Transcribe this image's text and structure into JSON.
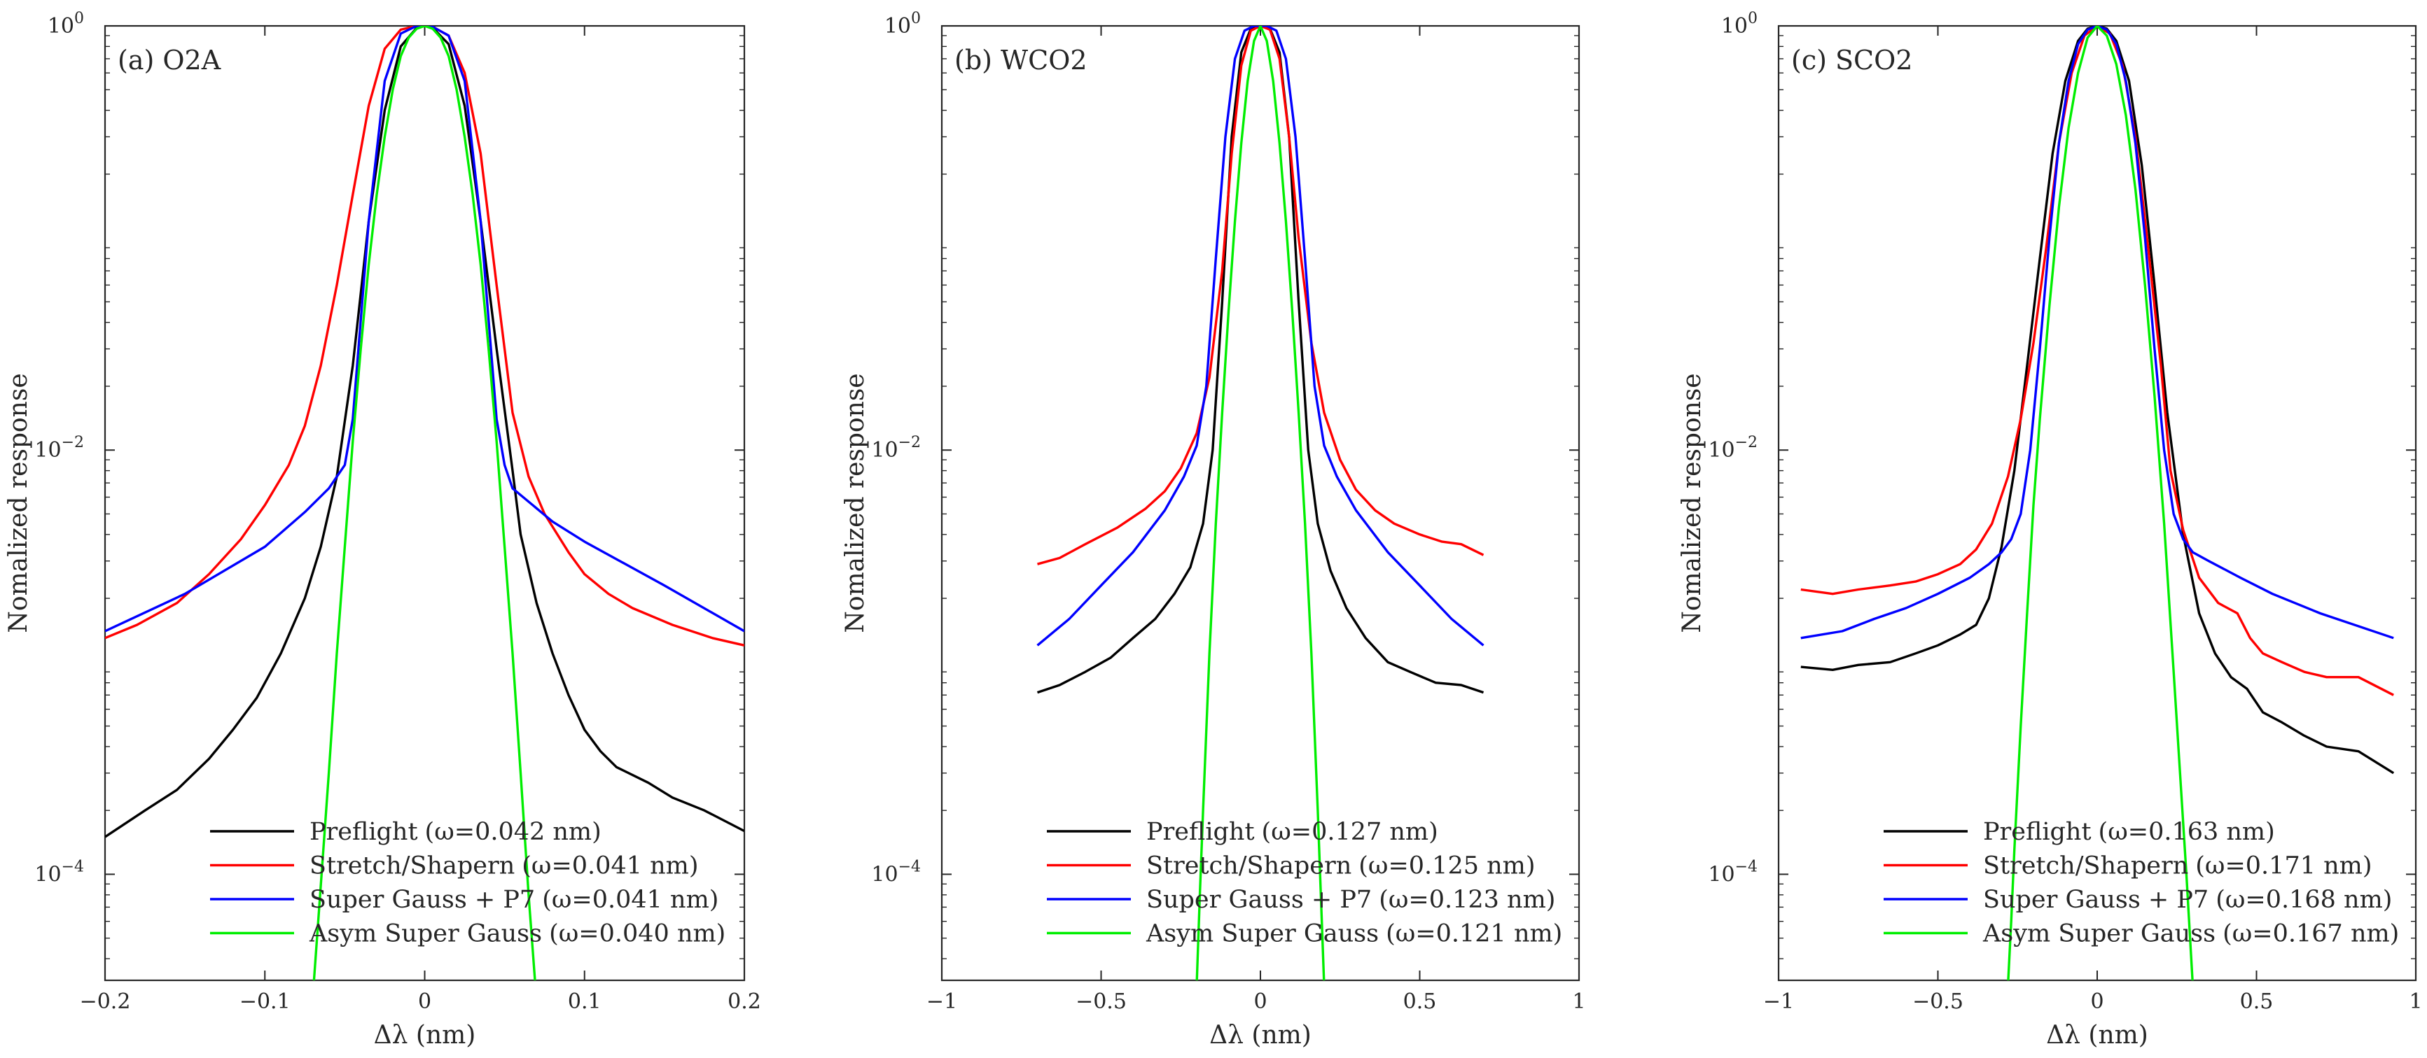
{
  "chart_data": [
    {
      "type": "line",
      "title": "(a) O2A",
      "xlabel": "Δλ (nm)",
      "ylabel": "Nomalized response",
      "xlim": [
        -0.2,
        0.2
      ],
      "ylim_log10": [
        -4.5,
        0
      ],
      "yscale": "log",
      "xticks": [
        -0.2,
        -0.1,
        0,
        0.1,
        0.2
      ],
      "xtick_labels": [
        "−0.2",
        "−0.1",
        "0",
        "0.1",
        "0.2"
      ],
      "yticks_log10": [
        0,
        -2,
        -4
      ],
      "ytick_base": "10",
      "ytick_exponents": [
        "0",
        "−2",
        "−4"
      ],
      "legend_position": "bottom-center",
      "series": [
        {
          "name": "Preflight",
          "width_label": "(ω=0.042 nm)",
          "color": "#000000",
          "x": [
            -0.2,
            -0.175,
            -0.155,
            -0.135,
            -0.12,
            -0.105,
            -0.09,
            -0.075,
            -0.065,
            -0.055,
            -0.045,
            -0.035,
            -0.025,
            -0.015,
            -0.005,
            0,
            0.005,
            0.015,
            0.025,
            0.035,
            0.045,
            0.055,
            0.06,
            0.07,
            0.08,
            0.09,
            0.1,
            0.11,
            0.12,
            0.14,
            0.155,
            0.175,
            0.2
          ],
          "y": [
            0.00015,
            0.0002,
            0.00025,
            0.00035,
            0.00048,
            0.00068,
            0.0011,
            0.002,
            0.0035,
            0.0075,
            0.025,
            0.12,
            0.4,
            0.8,
            0.98,
            1,
            0.98,
            0.82,
            0.42,
            0.12,
            0.03,
            0.008,
            0.004,
            0.0019,
            0.0011,
            0.0007,
            0.00048,
            0.00038,
            0.00032,
            0.00027,
            0.00023,
            0.0002,
            0.00016
          ]
        },
        {
          "name": "Stretch/Shapern",
          "width_label": "(ω=0.041 nm)",
          "color": "#ff0000",
          "x": [
            -0.2,
            -0.18,
            -0.155,
            -0.135,
            -0.115,
            -0.1,
            -0.085,
            -0.075,
            -0.065,
            -0.055,
            -0.045,
            -0.035,
            -0.025,
            -0.015,
            -0.005,
            0,
            0.005,
            0.015,
            0.025,
            0.035,
            0.045,
            0.055,
            0.065,
            0.075,
            0.09,
            0.1,
            0.115,
            0.13,
            0.155,
            0.18,
            0.2
          ],
          "y": [
            0.0013,
            0.0015,
            0.0019,
            0.0026,
            0.0038,
            0.0055,
            0.0085,
            0.013,
            0.025,
            0.06,
            0.16,
            0.42,
            0.78,
            0.96,
            1,
            1,
            0.99,
            0.9,
            0.6,
            0.25,
            0.06,
            0.015,
            0.0075,
            0.005,
            0.0033,
            0.0026,
            0.0021,
            0.0018,
            0.0015,
            0.0013,
            0.0012
          ]
        },
        {
          "name": "Super Gauss + P7",
          "width_label": "(ω=0.041 nm)",
          "color": "#0000ff",
          "x": [
            -0.2,
            -0.15,
            -0.1,
            -0.075,
            -0.06,
            -0.05,
            -0.045,
            -0.035,
            -0.025,
            -0.015,
            -0.005,
            0,
            0.005,
            0.015,
            0.025,
            0.035,
            0.045,
            0.05,
            0.055,
            0.08,
            0.1,
            0.15,
            0.2
          ],
          "y": [
            0.0014,
            0.0021,
            0.0035,
            0.0051,
            0.0066,
            0.0085,
            0.014,
            0.12,
            0.55,
            0.92,
            1,
            1,
            0.99,
            0.9,
            0.55,
            0.12,
            0.014,
            0.0085,
            0.0066,
            0.0046,
            0.0037,
            0.0023,
            0.0014
          ]
        },
        {
          "name": "Asym Super Gauss",
          "width_label": "(ω=0.040 nm)",
          "color": "#00ee00",
          "x": [
            -0.0695,
            -0.066,
            -0.06,
            -0.055,
            -0.05,
            -0.045,
            -0.04,
            -0.035,
            -0.03,
            -0.025,
            -0.02,
            -0.015,
            -0.01,
            -0.005,
            0,
            0.005,
            0.01,
            0.015,
            0.02,
            0.025,
            0.03,
            0.035,
            0.04,
            0.045,
            0.05,
            0.055,
            0.06,
            0.065,
            0.07,
            0.0725
          ],
          "y": [
            3e-05,
            7e-05,
            0.0003,
            0.0011,
            0.0035,
            0.011,
            0.03,
            0.075,
            0.16,
            0.3,
            0.5,
            0.72,
            0.88,
            0.97,
            1,
            0.97,
            0.88,
            0.72,
            0.5,
            0.3,
            0.16,
            0.075,
            0.03,
            0.011,
            0.0035,
            0.0011,
            0.0003,
            8e-05,
            2.5e-05,
            1e-05
          ]
        }
      ]
    },
    {
      "type": "line",
      "title": "(b) WCO2",
      "xlabel": "Δλ (nm)",
      "ylabel": "Nomalized response",
      "xlim": [
        -1,
        1
      ],
      "ylim_log10": [
        -4.5,
        0
      ],
      "yscale": "log",
      "xticks": [
        -1,
        -0.5,
        0,
        0.5,
        1
      ],
      "xtick_labels": [
        "−1",
        "−0.5",
        "0",
        "0.5",
        "1"
      ],
      "yticks_log10": [
        0,
        -2,
        -4
      ],
      "ytick_base": "10",
      "ytick_exponents": [
        "0",
        "−2",
        "−4"
      ],
      "legend_position": "bottom-center",
      "series": [
        {
          "name": "Preflight",
          "width_label": "(ω=0.127 nm)",
          "color": "#000000",
          "x": [
            -0.7,
            -0.63,
            -0.55,
            -0.47,
            -0.4,
            -0.33,
            -0.27,
            -0.22,
            -0.18,
            -0.15,
            -0.12,
            -0.09,
            -0.06,
            -0.03,
            0,
            0.03,
            0.06,
            0.09,
            0.12,
            0.15,
            0.18,
            0.22,
            0.27,
            0.33,
            0.4,
            0.47,
            0.55,
            0.63,
            0.7
          ],
          "y": [
            0.00072,
            0.00078,
            0.0009,
            0.00105,
            0.0013,
            0.0016,
            0.0021,
            0.0028,
            0.0045,
            0.01,
            0.05,
            0.3,
            0.75,
            0.97,
            1,
            0.97,
            0.75,
            0.3,
            0.05,
            0.01,
            0.0045,
            0.0027,
            0.0018,
            0.0013,
            0.001,
            0.0009,
            0.0008,
            0.00078,
            0.00072
          ]
        },
        {
          "name": "Stretch/Shapern",
          "width_label": "(ω=0.125 nm)",
          "color": "#ff0000",
          "x": [
            -0.7,
            -0.63,
            -0.55,
            -0.45,
            -0.36,
            -0.3,
            -0.25,
            -0.2,
            -0.16,
            -0.12,
            -0.09,
            -0.06,
            -0.03,
            0,
            0.03,
            0.06,
            0.09,
            0.12,
            0.16,
            0.2,
            0.25,
            0.3,
            0.36,
            0.42,
            0.5,
            0.57,
            0.63,
            0.7
          ],
          "y": [
            0.0029,
            0.0031,
            0.0036,
            0.0043,
            0.0053,
            0.0064,
            0.0082,
            0.012,
            0.022,
            0.07,
            0.25,
            0.65,
            0.95,
            1,
            0.96,
            0.7,
            0.3,
            0.1,
            0.032,
            0.015,
            0.009,
            0.0065,
            0.0052,
            0.0045,
            0.004,
            0.0037,
            0.0036,
            0.0032
          ]
        },
        {
          "name": "Super Gauss + P7",
          "width_label": "(ω=0.123 nm)",
          "color": "#0000ff",
          "x": [
            -0.7,
            -0.6,
            -0.5,
            -0.4,
            -0.3,
            -0.24,
            -0.2,
            -0.17,
            -0.14,
            -0.11,
            -0.08,
            -0.05,
            -0.02,
            0,
            0.02,
            0.05,
            0.08,
            0.11,
            0.14,
            0.17,
            0.2,
            0.24,
            0.3,
            0.4,
            0.5,
            0.6,
            0.7
          ],
          "y": [
            0.0012,
            0.0016,
            0.0023,
            0.0033,
            0.0052,
            0.0075,
            0.0105,
            0.02,
            0.08,
            0.3,
            0.7,
            0.95,
            1,
            1,
            1,
            0.95,
            0.7,
            0.3,
            0.08,
            0.02,
            0.0105,
            0.0075,
            0.0052,
            0.0033,
            0.0023,
            0.0016,
            0.0012
          ]
        },
        {
          "name": "Asym Super Gauss",
          "width_label": "(ω=0.121 nm)",
          "color": "#00ee00",
          "x": [
            -0.2,
            -0.19,
            -0.18,
            -0.16,
            -0.14,
            -0.12,
            -0.1,
            -0.08,
            -0.06,
            -0.04,
            -0.02,
            0,
            0.02,
            0.04,
            0.06,
            0.08,
            0.1,
            0.12,
            0.14,
            0.16,
            0.18,
            0.2,
            0.21
          ],
          "y": [
            3e-05,
            8e-05,
            0.0002,
            0.0011,
            0.0045,
            0.015,
            0.045,
            0.12,
            0.28,
            0.55,
            0.85,
            1,
            0.85,
            0.55,
            0.28,
            0.12,
            0.045,
            0.015,
            0.0045,
            0.0011,
            0.0002,
            3e-05,
            1e-05
          ]
        }
      ]
    },
    {
      "type": "line",
      "title": "(c) SCO2",
      "xlabel": "Δλ (nm)",
      "ylabel": "Nomalized response",
      "xlim": [
        -1,
        1
      ],
      "ylim_log10": [
        -4.5,
        0
      ],
      "yscale": "log",
      "xticks": [
        -1,
        -0.5,
        0,
        0.5,
        1
      ],
      "xtick_labels": [
        "−1",
        "−0.5",
        "0",
        "0.5",
        "1"
      ],
      "yticks_log10": [
        0,
        -2,
        -4
      ],
      "ytick_base": "10",
      "ytick_exponents": [
        "0",
        "−2",
        "−4"
      ],
      "legend_position": "bottom-center",
      "series": [
        {
          "name": "Preflight",
          "width_label": "(ω=0.163 nm)",
          "color": "#000000",
          "x": [
            -0.93,
            -0.83,
            -0.75,
            -0.65,
            -0.57,
            -0.5,
            -0.43,
            -0.38,
            -0.34,
            -0.3,
            -0.26,
            -0.22,
            -0.18,
            -0.14,
            -0.1,
            -0.06,
            -0.03,
            0,
            0.03,
            0.06,
            0.1,
            0.14,
            0.18,
            0.22,
            0.27,
            0.32,
            0.37,
            0.42,
            0.47,
            0.52,
            0.58,
            0.65,
            0.72,
            0.82,
            0.93
          ],
          "y": [
            0.00095,
            0.00092,
            0.00097,
            0.001,
            0.0011,
            0.0012,
            0.00135,
            0.0015,
            0.002,
            0.0035,
            0.008,
            0.025,
            0.08,
            0.25,
            0.55,
            0.85,
            0.97,
            1,
            0.97,
            0.85,
            0.55,
            0.22,
            0.06,
            0.015,
            0.004,
            0.0017,
            0.0011,
            0.00085,
            0.00075,
            0.00058,
            0.00052,
            0.00045,
            0.0004,
            0.00038,
            0.0003
          ]
        },
        {
          "name": "Stretch/Shapern",
          "width_label": "(ω=0.171 nm)",
          "color": "#ff0000",
          "x": [
            -0.93,
            -0.83,
            -0.75,
            -0.65,
            -0.57,
            -0.5,
            -0.43,
            -0.38,
            -0.33,
            -0.28,
            -0.24,
            -0.2,
            -0.16,
            -0.12,
            -0.08,
            -0.04,
            0,
            0.04,
            0.08,
            0.12,
            0.16,
            0.2,
            0.23,
            0.27,
            0.32,
            0.38,
            0.44,
            0.48,
            0.52,
            0.58,
            0.65,
            0.72,
            0.82,
            0.93
          ],
          "y": [
            0.0022,
            0.0021,
            0.0022,
            0.0023,
            0.0024,
            0.0026,
            0.0029,
            0.0034,
            0.0045,
            0.0075,
            0.014,
            0.032,
            0.09,
            0.28,
            0.6,
            0.9,
            1,
            0.92,
            0.65,
            0.3,
            0.09,
            0.025,
            0.008,
            0.0042,
            0.0025,
            0.0019,
            0.0017,
            0.0013,
            0.0011,
            0.001,
            0.0009,
            0.00085,
            0.00085,
            0.0007
          ]
        },
        {
          "name": "Super Gauss + P7",
          "width_label": "(ω=0.168 nm)",
          "color": "#0000ff",
          "x": [
            -0.93,
            -0.8,
            -0.7,
            -0.6,
            -0.5,
            -0.4,
            -0.34,
            -0.3,
            -0.27,
            -0.24,
            -0.21,
            -0.18,
            -0.15,
            -0.12,
            -0.09,
            -0.06,
            -0.03,
            0,
            0.03,
            0.06,
            0.09,
            0.12,
            0.15,
            0.18,
            0.21,
            0.24,
            0.27,
            0.3,
            0.35,
            0.45,
            0.55,
            0.7,
            0.93
          ],
          "y": [
            0.0013,
            0.0014,
            0.0016,
            0.0018,
            0.0021,
            0.0025,
            0.0029,
            0.0033,
            0.0038,
            0.005,
            0.01,
            0.03,
            0.1,
            0.28,
            0.55,
            0.82,
            0.96,
            1,
            0.96,
            0.82,
            0.55,
            0.28,
            0.1,
            0.03,
            0.01,
            0.005,
            0.0038,
            0.0033,
            0.003,
            0.0025,
            0.0021,
            0.0017,
            0.0013
          ]
        },
        {
          "name": "Asym Super Gauss",
          "width_label": "(ω=0.167 nm)",
          "color": "#00ee00",
          "x": [
            -0.28,
            -0.27,
            -0.26,
            -0.24,
            -0.22,
            -0.2,
            -0.18,
            -0.15,
            -0.12,
            -0.09,
            -0.06,
            -0.03,
            0,
            0.03,
            0.06,
            0.09,
            0.12,
            0.15,
            0.18,
            0.21,
            0.24,
            0.26,
            0.28,
            0.3,
            0.31
          ],
          "y": [
            3e-05,
            6e-05,
            0.00013,
            0.0005,
            0.0017,
            0.0055,
            0.014,
            0.048,
            0.14,
            0.33,
            0.6,
            0.88,
            1,
            0.9,
            0.66,
            0.38,
            0.17,
            0.06,
            0.018,
            0.0045,
            0.0009,
            0.0003,
            0.0001,
            3e-05,
            1.5e-05
          ]
        }
      ]
    }
  ]
}
